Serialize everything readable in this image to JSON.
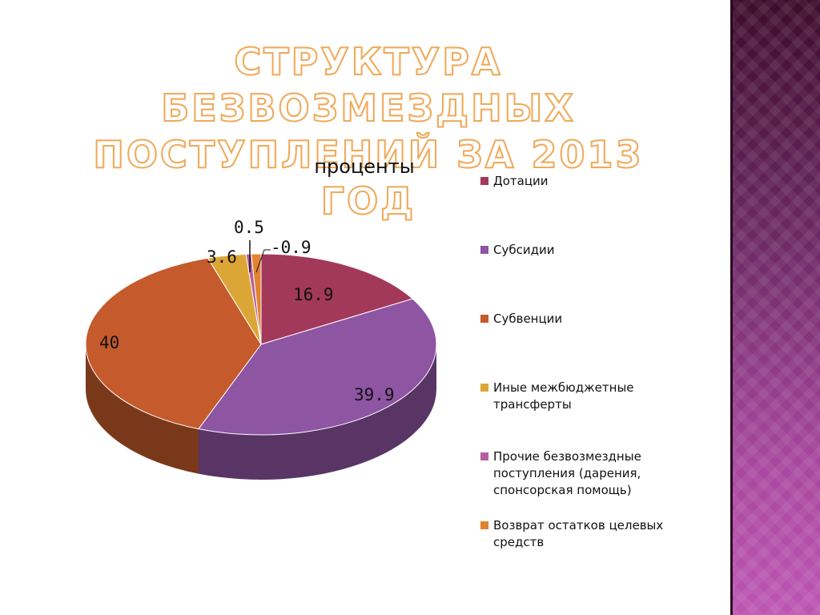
{
  "slide": {
    "title_line1": "СТРУКТУРА БЕЗВОЗМЕЗДНЫХ",
    "title_line2": "ПОСТУПЛЕНИЙ ЗА 2013 ГОД",
    "title_color": "#f0a95a",
    "side_panel_color": "#7a2e72"
  },
  "chart_data": {
    "type": "pie",
    "title": "проценты",
    "legend_position": "right",
    "slices": [
      {
        "name": "Дотации",
        "value": 16.9,
        "label": "16.9",
        "color": "#a3395a"
      },
      {
        "name": "Субсидии",
        "value": 39.9,
        "label": "39.9",
        "color": "#8e55a3"
      },
      {
        "name": "Субвенции",
        "value": 40,
        "label": "40",
        "color": "#c55a2c"
      },
      {
        "name": "Иные межбюджетные трансферты",
        "value": 3.6,
        "label": "3.6",
        "color": "#dca637"
      },
      {
        "name": "Прочие безвозмездные поступления (дарения, спонсорская помощь)",
        "value": 0.5,
        "label": "0.5",
        "color": "#b45fa0"
      },
      {
        "name": "Возврат остатков целевых средств",
        "value": -0.9,
        "label": "-0.9",
        "color": "#e2832f"
      }
    ]
  }
}
